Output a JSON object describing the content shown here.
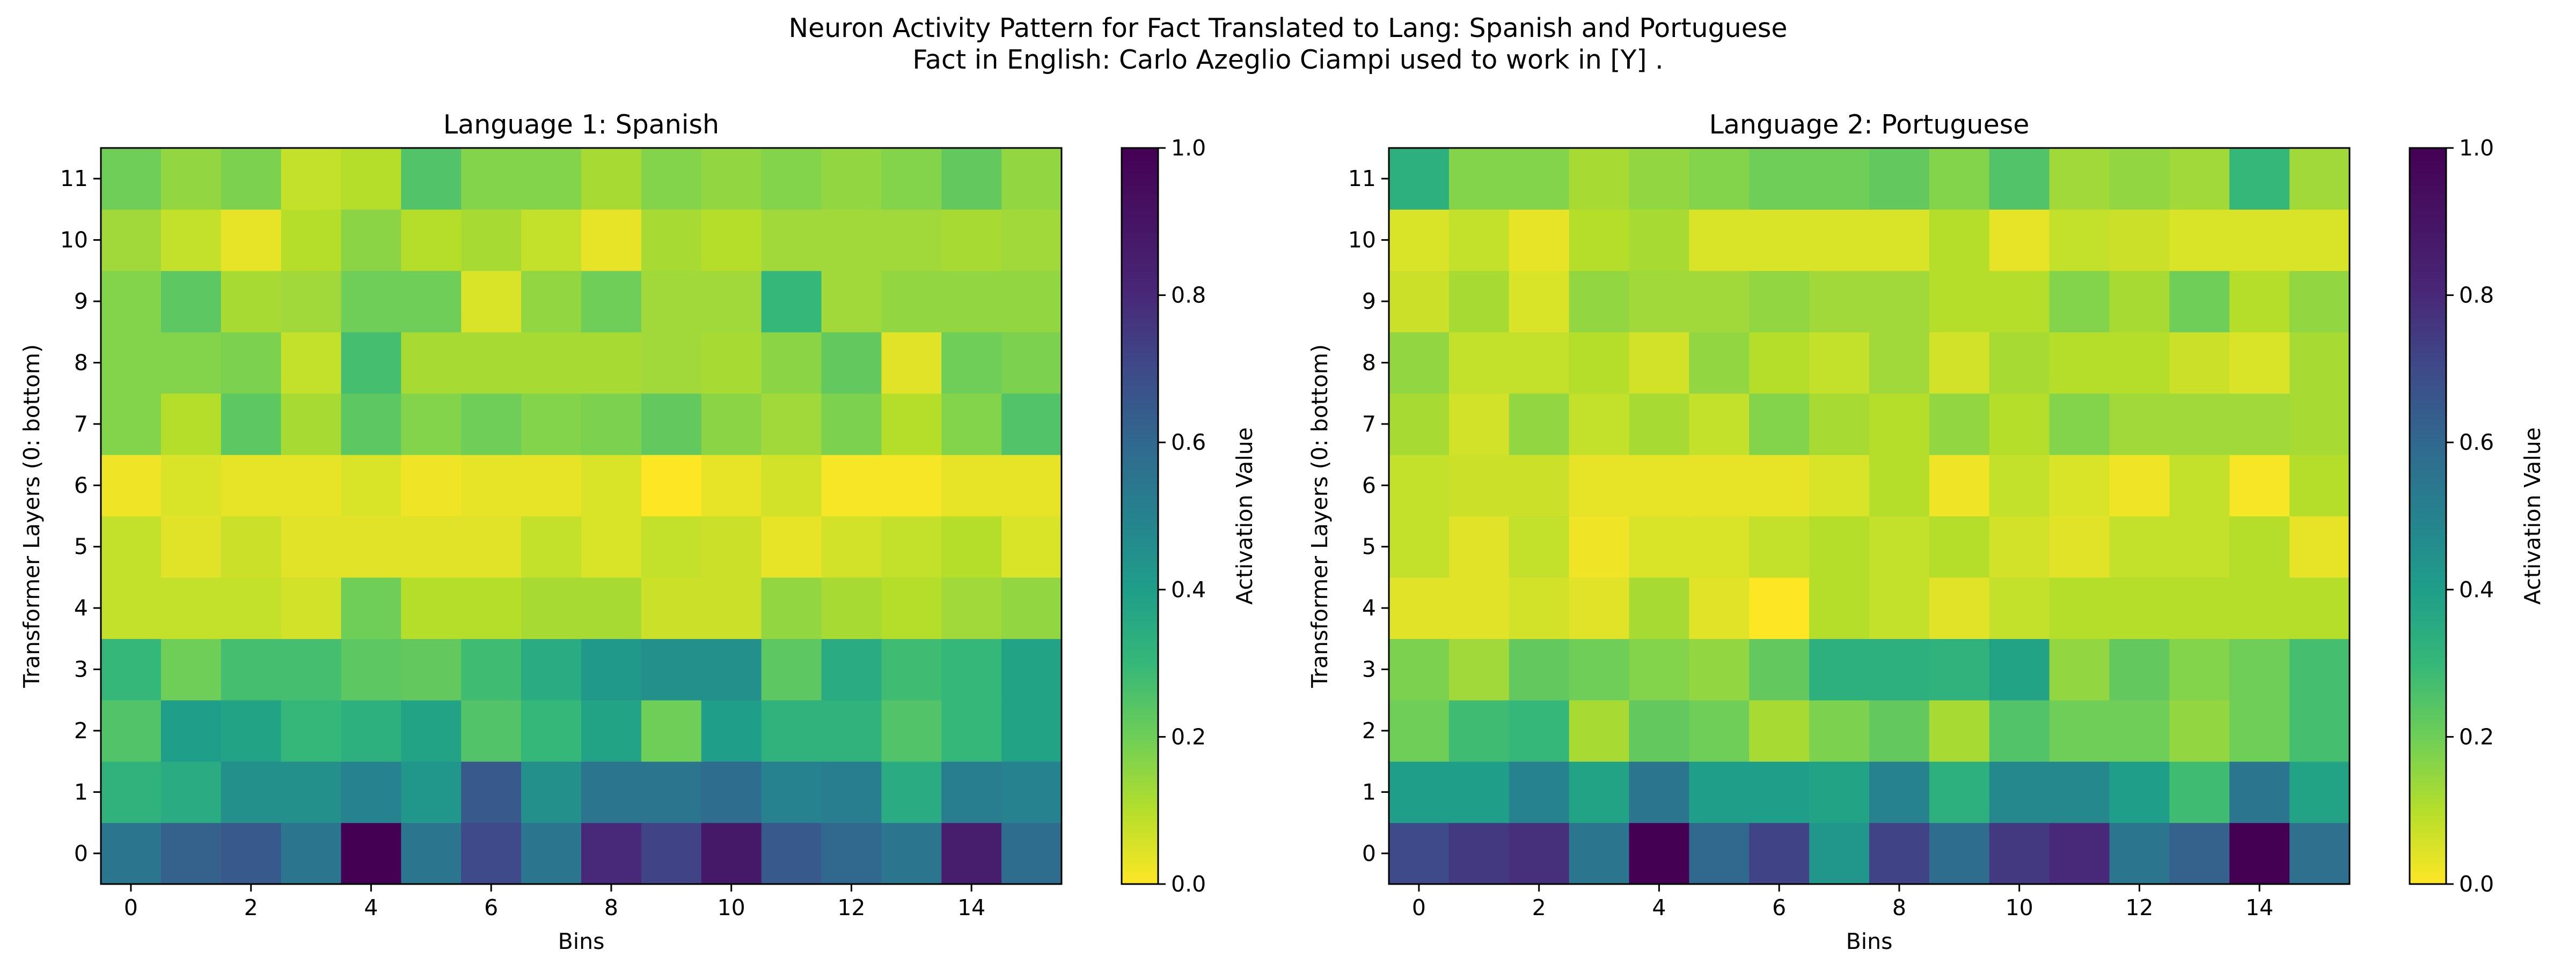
{
  "figure": {
    "title_line1": "Neuron Activity Pattern for Fact Translated to Lang: Spanish and Portuguese",
    "title_line2": "Fact in English: Carlo Azeglio Ciampi used to work in [Y] ."
  },
  "chart_data": [
    {
      "type": "heatmap",
      "title": "Language 1: Spanish",
      "xlabel": "Bins",
      "ylabel": "Transformer Layers (0: bottom)",
      "colorbar_label": "Activation Value",
      "colormap": "viridis_r",
      "value_range": [
        0,
        1
      ],
      "x_ticks": [
        0,
        2,
        4,
        6,
        8,
        10,
        12,
        14
      ],
      "y_ticks": [
        0,
        1,
        2,
        3,
        4,
        5,
        6,
        7,
        8,
        9,
        10,
        11
      ],
      "colorbar_ticks": [
        "0.0",
        "0.2",
        "0.4",
        "0.6",
        "0.8",
        "1.0"
      ],
      "rows": [
        [
          0.55,
          0.62,
          0.65,
          0.55,
          1.0,
          0.55,
          0.7,
          0.55,
          0.8,
          0.72,
          0.88,
          0.65,
          0.6,
          0.55,
          0.85,
          0.58
        ],
        [
          0.32,
          0.35,
          0.45,
          0.45,
          0.5,
          0.43,
          0.65,
          0.45,
          0.55,
          0.55,
          0.58,
          0.5,
          0.52,
          0.35,
          0.52,
          0.5
        ],
        [
          0.25,
          0.4,
          0.38,
          0.3,
          0.33,
          0.38,
          0.25,
          0.3,
          0.38,
          0.2,
          0.4,
          0.32,
          0.32,
          0.25,
          0.3,
          0.38
        ],
        [
          0.3,
          0.2,
          0.27,
          0.27,
          0.23,
          0.22,
          0.28,
          0.35,
          0.42,
          0.45,
          0.45,
          0.23,
          0.35,
          0.28,
          0.3,
          0.38
        ],
        [
          0.08,
          0.08,
          0.08,
          0.06,
          0.2,
          0.1,
          0.1,
          0.12,
          0.12,
          0.07,
          0.07,
          0.15,
          0.12,
          0.1,
          0.13,
          0.15
        ],
        [
          0.08,
          0.04,
          0.07,
          0.04,
          0.04,
          0.04,
          0.04,
          0.08,
          0.05,
          0.08,
          0.07,
          0.03,
          0.06,
          0.08,
          0.1,
          0.05
        ],
        [
          0.02,
          0.05,
          0.03,
          0.03,
          0.05,
          0.02,
          0.03,
          0.03,
          0.05,
          0.0,
          0.03,
          0.06,
          0.01,
          0.01,
          0.03,
          0.03
        ],
        [
          0.17,
          0.1,
          0.23,
          0.12,
          0.23,
          0.17,
          0.2,
          0.17,
          0.18,
          0.22,
          0.16,
          0.13,
          0.18,
          0.1,
          0.17,
          0.25
        ],
        [
          0.17,
          0.17,
          0.18,
          0.08,
          0.27,
          0.12,
          0.12,
          0.12,
          0.12,
          0.13,
          0.12,
          0.16,
          0.22,
          0.04,
          0.2,
          0.18
        ],
        [
          0.17,
          0.23,
          0.12,
          0.13,
          0.2,
          0.2,
          0.05,
          0.15,
          0.2,
          0.13,
          0.13,
          0.3,
          0.13,
          0.15,
          0.15,
          0.15
        ],
        [
          0.13,
          0.08,
          0.03,
          0.1,
          0.16,
          0.1,
          0.12,
          0.08,
          0.03,
          0.12,
          0.1,
          0.13,
          0.13,
          0.13,
          0.12,
          0.13
        ],
        [
          0.2,
          0.15,
          0.18,
          0.08,
          0.1,
          0.25,
          0.17,
          0.17,
          0.12,
          0.17,
          0.15,
          0.17,
          0.15,
          0.17,
          0.22,
          0.15
        ]
      ]
    },
    {
      "type": "heatmap",
      "title": "Language 2: Portuguese",
      "xlabel": "Bins",
      "ylabel": "Transformer Layers (0: bottom)",
      "colorbar_label": "Activation Value",
      "colormap": "viridis_r",
      "value_range": [
        0,
        1
      ],
      "x_ticks": [
        0,
        2,
        4,
        6,
        8,
        10,
        12,
        14
      ],
      "y_ticks": [
        0,
        1,
        2,
        3,
        4,
        5,
        6,
        7,
        8,
        9,
        10,
        11
      ],
      "colorbar_ticks": [
        "0.0",
        "0.2",
        "0.4",
        "0.6",
        "0.8",
        "1.0"
      ],
      "rows": [
        [
          0.7,
          0.75,
          0.78,
          0.55,
          1.0,
          0.6,
          0.72,
          0.43,
          0.72,
          0.58,
          0.75,
          0.8,
          0.55,
          0.62,
          1.0,
          0.57
        ],
        [
          0.4,
          0.4,
          0.5,
          0.38,
          0.55,
          0.4,
          0.4,
          0.38,
          0.5,
          0.33,
          0.48,
          0.48,
          0.4,
          0.28,
          0.55,
          0.38
        ],
        [
          0.2,
          0.28,
          0.3,
          0.12,
          0.22,
          0.2,
          0.12,
          0.18,
          0.22,
          0.12,
          0.25,
          0.2,
          0.2,
          0.15,
          0.2,
          0.27
        ],
        [
          0.18,
          0.13,
          0.22,
          0.2,
          0.17,
          0.15,
          0.22,
          0.33,
          0.33,
          0.32,
          0.38,
          0.15,
          0.22,
          0.17,
          0.2,
          0.27
        ],
        [
          0.04,
          0.04,
          0.06,
          0.04,
          0.12,
          0.04,
          0.0,
          0.1,
          0.08,
          0.04,
          0.08,
          0.1,
          0.1,
          0.1,
          0.1,
          0.1
        ],
        [
          0.08,
          0.04,
          0.08,
          0.02,
          0.05,
          0.05,
          0.08,
          0.1,
          0.08,
          0.1,
          0.06,
          0.04,
          0.08,
          0.08,
          0.1,
          0.03
        ],
        [
          0.08,
          0.07,
          0.07,
          0.03,
          0.03,
          0.03,
          0.03,
          0.05,
          0.1,
          0.02,
          0.08,
          0.05,
          0.02,
          0.08,
          0.01,
          0.1
        ],
        [
          0.12,
          0.06,
          0.15,
          0.08,
          0.12,
          0.08,
          0.17,
          0.12,
          0.1,
          0.15,
          0.1,
          0.17,
          0.13,
          0.13,
          0.13,
          0.12
        ],
        [
          0.15,
          0.08,
          0.08,
          0.1,
          0.06,
          0.15,
          0.1,
          0.08,
          0.13,
          0.06,
          0.12,
          0.1,
          0.1,
          0.07,
          0.05,
          0.12
        ],
        [
          0.07,
          0.12,
          0.05,
          0.15,
          0.13,
          0.13,
          0.15,
          0.13,
          0.13,
          0.1,
          0.1,
          0.17,
          0.12,
          0.2,
          0.1,
          0.15
        ],
        [
          0.05,
          0.08,
          0.03,
          0.1,
          0.12,
          0.05,
          0.05,
          0.05,
          0.05,
          0.1,
          0.03,
          0.08,
          0.07,
          0.05,
          0.05,
          0.05
        ],
        [
          0.33,
          0.17,
          0.17,
          0.12,
          0.15,
          0.17,
          0.2,
          0.2,
          0.22,
          0.17,
          0.25,
          0.13,
          0.15,
          0.13,
          0.3,
          0.13
        ]
      ]
    }
  ]
}
